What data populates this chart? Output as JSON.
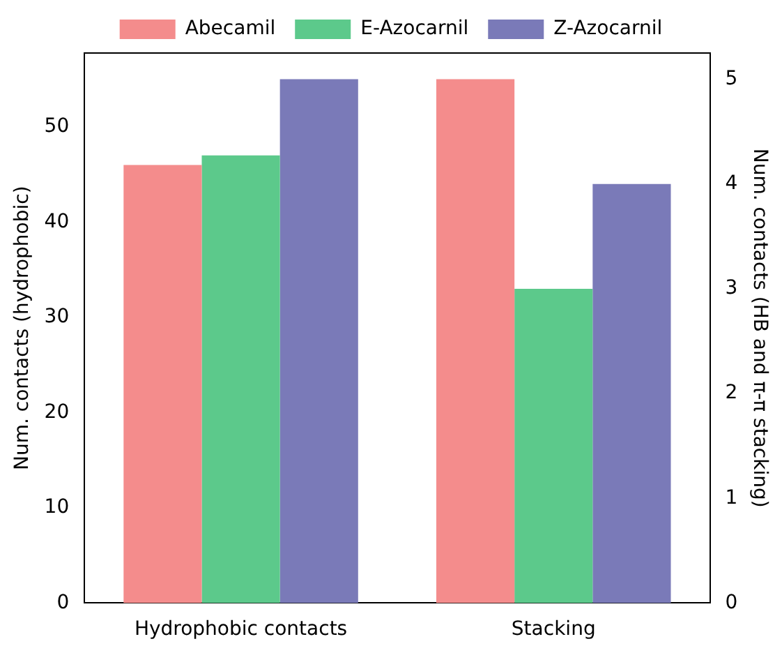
{
  "chart_data": {
    "type": "bar",
    "categories": [
      "Hydrophobic contacts",
      "Stacking"
    ],
    "ylabel": "Num. contacts (hydrophobic)",
    "y2label": "Num. contacts (HB and π-π stacking)",
    "series": [
      {
        "name": "Abecamil",
        "color": "#f48c8c",
        "values": [
          46,
          null
        ]
      },
      {
        "name": "E-Azocarnil",
        "color": "#5cc98b",
        "values": [
          47,
          null
        ]
      },
      {
        "name": "Z-Azocarnil",
        "color": "#7a7ab8",
        "values": [
          55,
          null
        ]
      },
      {
        "color": "#f48c8c",
        "values": [
          null,
          5
        ],
        "axis": "y2"
      },
      {
        "color": "#5cc98b",
        "values": [
          null,
          3
        ],
        "axis": "y2"
      },
      {
        "color": "#7a7ab8",
        "values": [
          null,
          4
        ],
        "axis": "y2"
      }
    ],
    "ylim": [
      0,
      57.75
    ],
    "yticks": [
      0,
      10,
      20,
      30,
      40,
      50
    ],
    "y2lim": [
      0,
      5.25
    ],
    "y2ticks": [
      0,
      1,
      2,
      3,
      4,
      5
    ],
    "grid": false,
    "legend": "top"
  }
}
